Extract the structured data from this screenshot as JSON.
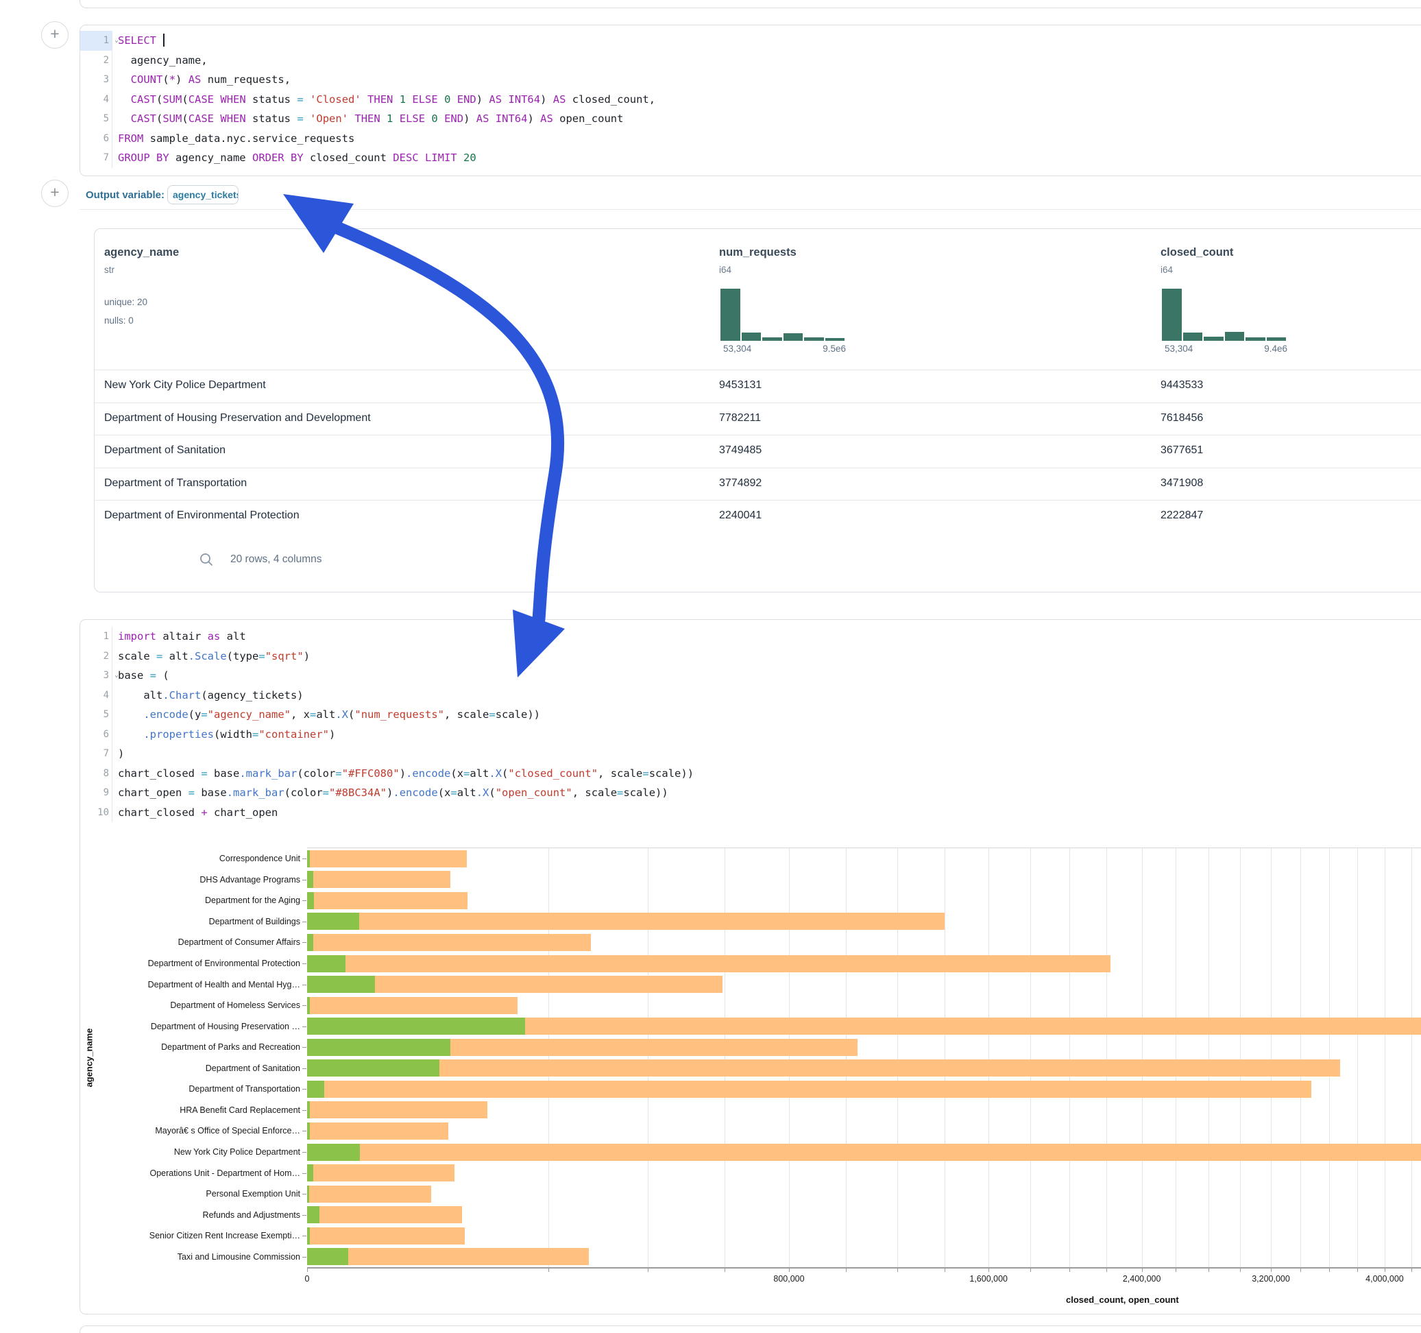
{
  "ui": {
    "outvar_label": "Output variable:",
    "outvar_value": "agency_tickets",
    "table_footer": "20 rows, 4 columns",
    "add_button": "+",
    "arrow_color": "#2b56d9"
  },
  "sql_cell": {
    "lines": [
      {
        "n": "1",
        "chev": true,
        "active": true,
        "caret": true,
        "t": [
          [
            "kw",
            "SELECT"
          ],
          [
            "id",
            " "
          ]
        ]
      },
      {
        "n": "2",
        "t": [
          [
            "id",
            "  agency_name,"
          ]
        ]
      },
      {
        "n": "3",
        "t": [
          [
            "id",
            "  "
          ],
          [
            "kw",
            "COUNT"
          ],
          [
            "id",
            "("
          ],
          [
            "kw",
            "*"
          ],
          [
            "id",
            ") "
          ],
          [
            "kw",
            "AS"
          ],
          [
            "id",
            " num_requests,"
          ]
        ]
      },
      {
        "n": "4",
        "t": [
          [
            "id",
            "  "
          ],
          [
            "kw",
            "CAST"
          ],
          [
            "id",
            "("
          ],
          [
            "kw",
            "SUM"
          ],
          [
            "id",
            "("
          ],
          [
            "kw",
            "CASE"
          ],
          [
            "id",
            " "
          ],
          [
            "kw",
            "WHEN"
          ],
          [
            "id",
            " status "
          ],
          [
            "op",
            "="
          ],
          [
            "id",
            " "
          ],
          [
            "str",
            "'Closed'"
          ],
          [
            "id",
            " "
          ],
          [
            "kw",
            "THEN"
          ],
          [
            "id",
            " "
          ],
          [
            "num",
            "1"
          ],
          [
            "id",
            " "
          ],
          [
            "kw",
            "ELSE"
          ],
          [
            "id",
            " "
          ],
          [
            "num",
            "0"
          ],
          [
            "id",
            " "
          ],
          [
            "kw",
            "END"
          ],
          [
            "id",
            ") "
          ],
          [
            "kw",
            "AS"
          ],
          [
            "id",
            " "
          ],
          [
            "kw",
            "INT64"
          ],
          [
            "id",
            ") "
          ],
          [
            "kw",
            "AS"
          ],
          [
            "id",
            " closed_count,"
          ]
        ]
      },
      {
        "n": "5",
        "t": [
          [
            "id",
            "  "
          ],
          [
            "kw",
            "CAST"
          ],
          [
            "id",
            "("
          ],
          [
            "kw",
            "SUM"
          ],
          [
            "id",
            "("
          ],
          [
            "kw",
            "CASE"
          ],
          [
            "id",
            " "
          ],
          [
            "kw",
            "WHEN"
          ],
          [
            "id",
            " status "
          ],
          [
            "op",
            "="
          ],
          [
            "id",
            " "
          ],
          [
            "str",
            "'Open'"
          ],
          [
            "id",
            " "
          ],
          [
            "kw",
            "THEN"
          ],
          [
            "id",
            " "
          ],
          [
            "num",
            "1"
          ],
          [
            "id",
            " "
          ],
          [
            "kw",
            "ELSE"
          ],
          [
            "id",
            " "
          ],
          [
            "num",
            "0"
          ],
          [
            "id",
            " "
          ],
          [
            "kw",
            "END"
          ],
          [
            "id",
            ") "
          ],
          [
            "kw",
            "AS"
          ],
          [
            "id",
            " "
          ],
          [
            "kw",
            "INT64"
          ],
          [
            "id",
            ") "
          ],
          [
            "kw",
            "AS"
          ],
          [
            "id",
            " open_count"
          ]
        ]
      },
      {
        "n": "6",
        "t": [
          [
            "kw",
            "FROM"
          ],
          [
            "id",
            " sample_data.nyc.service_requests"
          ]
        ]
      },
      {
        "n": "7",
        "t": [
          [
            "kw",
            "GROUP BY"
          ],
          [
            "id",
            " agency_name "
          ],
          [
            "kw",
            "ORDER BY"
          ],
          [
            "id",
            " closed_count "
          ],
          [
            "kw",
            "DESC"
          ],
          [
            "id",
            " "
          ],
          [
            "kw",
            "LIMIT"
          ],
          [
            "id",
            " "
          ],
          [
            "num",
            "20"
          ]
        ]
      }
    ]
  },
  "python_cell": {
    "lines": [
      {
        "n": "1",
        "t": [
          [
            "kw",
            "import"
          ],
          [
            "id",
            " altair "
          ],
          [
            "kw",
            "as"
          ],
          [
            "id",
            " alt"
          ]
        ]
      },
      {
        "n": "2",
        "t": [
          [
            "id",
            "scale "
          ],
          [
            "op",
            "="
          ],
          [
            "id",
            " alt"
          ],
          [
            "fn",
            ".Scale"
          ],
          [
            "id",
            "(type"
          ],
          [
            "op",
            "="
          ],
          [
            "str",
            "\"sqrt\""
          ],
          [
            "id",
            ")"
          ]
        ]
      },
      {
        "n": "3",
        "chev": true,
        "t": [
          [
            "id",
            "base "
          ],
          [
            "op",
            "="
          ],
          [
            "id",
            " ("
          ]
        ]
      },
      {
        "n": "4",
        "t": [
          [
            "id",
            "    alt"
          ],
          [
            "fn",
            ".Chart"
          ],
          [
            "id",
            "(agency_tickets)"
          ]
        ]
      },
      {
        "n": "5",
        "t": [
          [
            "id",
            "    "
          ],
          [
            "fn",
            ".encode"
          ],
          [
            "id",
            "(y"
          ],
          [
            "op",
            "="
          ],
          [
            "str",
            "\"agency_name\""
          ],
          [
            "id",
            ", x"
          ],
          [
            "op",
            "="
          ],
          [
            "id",
            "alt"
          ],
          [
            "fn",
            ".X"
          ],
          [
            "id",
            "("
          ],
          [
            "str",
            "\"num_requests\""
          ],
          [
            "id",
            ", scale"
          ],
          [
            "op",
            "="
          ],
          [
            "id",
            "scale))"
          ]
        ]
      },
      {
        "n": "6",
        "t": [
          [
            "id",
            "    "
          ],
          [
            "fn",
            ".properties"
          ],
          [
            "id",
            "(width"
          ],
          [
            "op",
            "="
          ],
          [
            "str",
            "\"container\""
          ],
          [
            "id",
            ")"
          ]
        ]
      },
      {
        "n": "7",
        "t": [
          [
            "id",
            ")"
          ]
        ]
      },
      {
        "n": "8",
        "t": [
          [
            "id",
            "chart_closed "
          ],
          [
            "op",
            "="
          ],
          [
            "id",
            " base"
          ],
          [
            "fn",
            ".mark_bar"
          ],
          [
            "id",
            "(color"
          ],
          [
            "op",
            "="
          ],
          [
            "str",
            "\"#FFC080\""
          ],
          [
            "id",
            ")"
          ],
          [
            "fn",
            ".encode"
          ],
          [
            "id",
            "(x"
          ],
          [
            "op",
            "="
          ],
          [
            "id",
            "alt"
          ],
          [
            "fn",
            ".X"
          ],
          [
            "id",
            "("
          ],
          [
            "str",
            "\"closed_count\""
          ],
          [
            "id",
            ", scale"
          ],
          [
            "op",
            "="
          ],
          [
            "id",
            "scale))"
          ]
        ]
      },
      {
        "n": "9",
        "t": [
          [
            "id",
            "chart_open "
          ],
          [
            "op",
            "="
          ],
          [
            "id",
            " base"
          ],
          [
            "fn",
            ".mark_bar"
          ],
          [
            "id",
            "(color"
          ],
          [
            "op",
            "="
          ],
          [
            "str",
            "\"#8BC34A\""
          ],
          [
            "id",
            ")"
          ],
          [
            "fn",
            ".encode"
          ],
          [
            "id",
            "(x"
          ],
          [
            "op",
            "="
          ],
          [
            "id",
            "alt"
          ],
          [
            "fn",
            ".X"
          ],
          [
            "id",
            "("
          ],
          [
            "str",
            "\"open_count\""
          ],
          [
            "id",
            ", scale"
          ],
          [
            "op",
            "="
          ],
          [
            "id",
            "scale))"
          ]
        ]
      },
      {
        "n": "10",
        "t": [
          [
            "id",
            "chart_closed "
          ],
          [
            "kw",
            "+"
          ],
          [
            "id",
            " chart_open"
          ]
        ]
      }
    ]
  },
  "table": {
    "columns": [
      {
        "name": "agency_name",
        "type": "str",
        "stats": [
          "unique: 20",
          "nulls: 0"
        ]
      },
      {
        "name": "num_requests",
        "type": "i64",
        "hist": [
          1,
          0.155,
          0.067,
          0.147,
          0.062,
          0.058
        ],
        "min": "53,304",
        "max": "9.5e6"
      },
      {
        "name": "closed_count",
        "type": "i64",
        "hist": [
          1,
          0.155,
          0.075,
          0.165,
          0.07,
          0.065
        ],
        "min": "53,304",
        "max": "9.4e6"
      }
    ],
    "rows": [
      [
        "New York City Police Department",
        "9453131",
        "9443533"
      ],
      [
        "Department of Housing Preservation and Development",
        "7782211",
        "7618456"
      ],
      [
        "Department of Sanitation",
        "3749485",
        "3677651"
      ],
      [
        "Department of Transportation",
        "3774892",
        "3471908"
      ],
      [
        "Department of Environmental Protection",
        "2240041",
        "2222847"
      ]
    ]
  },
  "chart_data": {
    "type": "bar",
    "orientation": "horizontal",
    "x_scale": "sqrt",
    "xlabel": "closed_count, open_count",
    "ylabel": "agency_name",
    "grid": true,
    "gridline_step": 200000,
    "x_tick_labels": [
      {
        "value": 0,
        "label": "0"
      },
      {
        "value": 800000,
        "label": "800,000"
      },
      {
        "value": 1600000,
        "label": "1,600,000"
      },
      {
        "value": 2400000,
        "label": "2,400,000"
      },
      {
        "value": 3200000,
        "label": "3,200,000"
      },
      {
        "value": 4000000,
        "label": "4,000,000"
      }
    ],
    "categories": [
      "Correspondence Unit",
      "DHS Advantage Programs",
      "Department for the Aging",
      "Department of Buildings",
      "Department of Consumer Affairs",
      "Department of Environmental Protection",
      "Department of Health and Mental Hyg…",
      "Department of Homeless Services",
      "Department of Housing Preservation …",
      "Department of Parks and Recreation",
      "Department of Sanitation",
      "Department of Transportation",
      "HRA Benefit Card Replacement",
      "Mayorâ€ s Office of Special Enforce…",
      "New York City Police Department",
      "Operations Unit - Department of Hom…",
      "Personal Exemption Unit",
      "Refunds and Adjustments",
      "Senior Citizen Rent Increase Exempti…",
      "Taxi and Limousine Commission"
    ],
    "series": [
      {
        "name": "closed_count",
        "color": "#FFC080",
        "values": [
          88000,
          71000,
          88500,
          1400000,
          277000,
          2222847,
          595000,
          153000,
          7618456,
          1045000,
          3677651,
          3471908,
          112000,
          69000,
          9443533,
          75000,
          53304,
          83000,
          86000,
          274000
        ]
      },
      {
        "name": "open_count",
        "color": "#8BC34A",
        "values": [
          20,
          120,
          150,
          9400,
          130,
          5000,
          16000,
          20,
          163755,
          71000,
          60000,
          1000,
          20,
          20,
          9598,
          130,
          15,
          500,
          20,
          5800
        ]
      }
    ]
  }
}
